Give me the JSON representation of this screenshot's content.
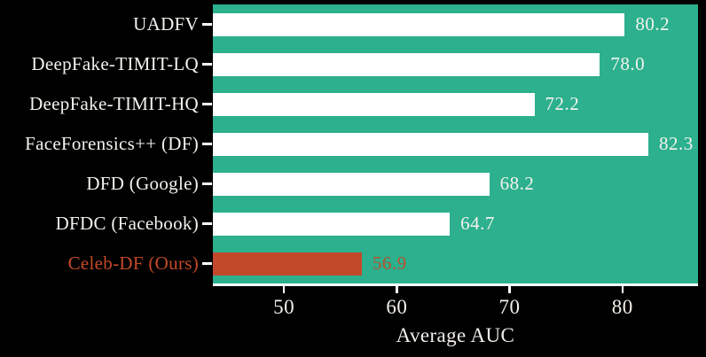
{
  "chart_data": {
    "type": "bar",
    "orientation": "horizontal",
    "title": "",
    "xlabel": "Average AUC",
    "ylabel": "",
    "categories": [
      "UADFV",
      "DeepFake-TIMIT-LQ",
      "DeepFake-TIMIT-HQ",
      "FaceForensics++ (DF)",
      "DFD (Google)",
      "DFDC (Facebook)",
      "Celeb-DF (Ours)"
    ],
    "values": [
      80.2,
      78.0,
      72.2,
      82.3,
      68.2,
      64.7,
      56.9
    ],
    "value_labels": [
      "80.2",
      "78.0",
      "72.2",
      "82.3",
      "68.2",
      "64.7",
      "56.9"
    ],
    "highlight_index": 6,
    "xlim": [
      43.7,
      86.7
    ],
    "xticks": [
      50,
      60,
      70,
      80
    ],
    "xtick_labels": [
      "50",
      "60",
      "70",
      "80"
    ],
    "grid": false,
    "legend": "none",
    "colors": {
      "page_bg": "#000000",
      "plot_bg": "#2cb08e",
      "bar_default": "#ffffff",
      "bar_highlight": "#c2492a",
      "value_label_default": "#f5f2ec",
      "value_label_highlight": "#b8502d",
      "category_label_default": "#f5f2ec",
      "category_label_highlight": "#c44a28",
      "tick": "#ffffff"
    }
  }
}
